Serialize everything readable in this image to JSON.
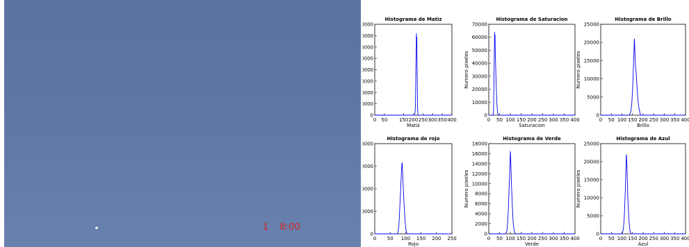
{
  "photo": {
    "overlay_number": "1",
    "overlay_time": "8:00",
    "overlay_color": "#d92020",
    "sky_color": "#5f77a4"
  },
  "chart_data": [
    {
      "type": "line",
      "title": "Histograma de Matiz",
      "xlabel": "Matiz",
      "ylabel": "",
      "xlim": [
        0,
        400
      ],
      "ylim": [
        0,
        8000
      ],
      "yticks": [
        0,
        1000,
        2000,
        3000,
        4000,
        5000,
        6000,
        7000,
        8000
      ],
      "ytick_labels": [
        "0",
        ")000",
        ")000",
        ")000",
        ")000",
        ")000",
        ")000",
        ")000",
        ")000"
      ],
      "xticks": [
        0,
        50,
        150,
        200,
        250,
        300,
        350,
        400
      ],
      "xtick_labels": [
        "0",
        "50",
        "150",
        "200",
        "250",
        "300",
        "350",
        "400"
      ],
      "color": "#0000ee",
      "series": [
        {
          "x": [
            0,
            207,
            209,
            211,
            212,
            213,
            214,
            215,
            216,
            217,
            218,
            219,
            220,
            221,
            222,
            224,
            400
          ],
          "y": [
            0,
            0,
            300,
            900,
            2000,
            3600,
            5000,
            6000,
            7200,
            6000,
            6900,
            4800,
            3400,
            2000,
            600,
            0,
            0
          ]
        }
      ]
    },
    {
      "type": "line",
      "title": "Histograma de Saturacion",
      "xlabel": "Saturacion",
      "ylabel": "Numero pixeles",
      "xlim": [
        0,
        400
      ],
      "ylim": [
        0,
        70000
      ],
      "yticks": [
        0,
        10000,
        20000,
        30000,
        40000,
        50000,
        60000,
        70000
      ],
      "ytick_labels": [
        "0",
        "10000",
        "20000",
        "30000",
        "40000",
        "50000",
        "60000",
        "70000"
      ],
      "xticks": [
        0,
        50,
        100,
        150,
        200,
        250,
        300,
        350,
        400
      ],
      "xtick_labels": [
        "0",
        "50",
        "100",
        "150",
        "200",
        "250",
        "300",
        "350",
        "400"
      ],
      "color": "#0000ee",
      "series": [
        {
          "x": [
            0,
            20,
            22,
            23,
            24,
            25,
            26,
            27,
            28,
            29,
            30,
            32,
            34,
            36,
            38,
            40,
            43,
            46,
            400
          ],
          "y": [
            0,
            0,
            3000,
            12000,
            26000,
            40000,
            52000,
            64000,
            56000,
            62000,
            50000,
            38000,
            26000,
            15000,
            8000,
            3500,
            800,
            0,
            0
          ]
        }
      ]
    },
    {
      "type": "line",
      "title": "Histograma de Brillo",
      "xlabel": "Brillo",
      "ylabel": "Numero pixeles",
      "xlim": [
        0,
        400
      ],
      "ylim": [
        0,
        25000
      ],
      "yticks": [
        0,
        5000,
        10000,
        15000,
        20000,
        25000
      ],
      "ytick_labels": [
        "0",
        "5000",
        "10000",
        "15000",
        "20000",
        "25000"
      ],
      "xticks": [
        0,
        50,
        100,
        150,
        200,
        250,
        300,
        350,
        400
      ],
      "xtick_labels": [
        "0",
        "50",
        "100",
        "150",
        "200",
        "250",
        "300",
        "350",
        "400"
      ],
      "color": "#0000ee",
      "series": [
        {
          "x": [
            0,
            135,
            142,
            147,
            150,
            153,
            155,
            157,
            158,
            159,
            160,
            162,
            164,
            167,
            170,
            174,
            180,
            188,
            400
          ],
          "y": [
            0,
            0,
            1000,
            3500,
            7000,
            11000,
            15000,
            17500,
            20000,
            21000,
            19500,
            16000,
            13500,
            12000,
            9000,
            5000,
            2000,
            0,
            0
          ]
        }
      ]
    },
    {
      "type": "line",
      "title": "Histograma de rojo",
      "xlabel": "Rojo",
      "ylabel": "",
      "xlim": [
        0,
        250
      ],
      "ylim": [
        0,
        20000
      ],
      "yticks": [
        0,
        5000,
        10000,
        15000,
        20000
      ],
      "ytick_labels": [
        "0",
        ")000",
        ")000",
        ")000",
        ")000"
      ],
      "xticks": [
        0,
        50,
        100,
        150,
        200,
        250
      ],
      "xtick_labels": [
        "0",
        "50",
        "100",
        "150",
        "200",
        "250"
      ],
      "color": "#0000ee",
      "series": [
        {
          "x": [
            0,
            74,
            78,
            80,
            82,
            84,
            86,
            88,
            89,
            90,
            92,
            94,
            96,
            98,
            100,
            102,
            105,
            250
          ],
          "y": [
            0,
            0,
            1500,
            4000,
            7000,
            10000,
            13000,
            15500,
            15800,
            14000,
            11000,
            8000,
            5500,
            3200,
            1500,
            500,
            0,
            0
          ]
        }
      ]
    },
    {
      "type": "line",
      "title": "Histograma de Verde",
      "xlabel": "Verde",
      "ylabel": "Numero pixeles",
      "xlim": [
        0,
        400
      ],
      "ylim": [
        0,
        18000
      ],
      "yticks": [
        0,
        2000,
        4000,
        6000,
        8000,
        10000,
        12000,
        14000,
        16000,
        18000
      ],
      "ytick_labels": [
        "0",
        "2000",
        "4000",
        "6000",
        "8000",
        "10000",
        "12000",
        "14000",
        "16000",
        "18000"
      ],
      "xticks": [
        0,
        50,
        100,
        150,
        200,
        250,
        300,
        350,
        400
      ],
      "xtick_labels": [
        "0",
        "50",
        "100",
        "150",
        "200",
        "250",
        "300",
        "350",
        "400"
      ],
      "color": "#0000ee",
      "series": [
        {
          "x": [
            0,
            80,
            85,
            88,
            91,
            94,
            97,
            99,
            100,
            101,
            103,
            105,
            108,
            111,
            114,
            118,
            123,
            400
          ],
          "y": [
            0,
            0,
            800,
            2500,
            5000,
            8500,
            12000,
            14500,
            16500,
            16000,
            13500,
            10000,
            7000,
            4000,
            2000,
            600,
            0,
            0
          ]
        }
      ]
    },
    {
      "type": "line",
      "title": "Histograma de Azul",
      "xlabel": "Azul",
      "ylabel": "Numero pixeles",
      "xlim": [
        0,
        400
      ],
      "ylim": [
        0,
        25000
      ],
      "yticks": [
        0,
        5000,
        10000,
        15000,
        20000,
        25000
      ],
      "ytick_labels": [
        "0",
        "5000",
        "10000",
        "15000",
        "20000",
        "25000"
      ],
      "xticks": [
        0,
        50,
        100,
        150,
        200,
        250,
        300,
        350,
        400
      ],
      "xtick_labels": [
        "0",
        "50",
        "100",
        "150",
        "200",
        "250",
        "300",
        "350",
        "400"
      ],
      "color": "#0000ee",
      "series": [
        {
          "x": [
            0,
            100,
            106,
            110,
            113,
            116,
            118,
            120,
            121,
            122,
            124,
            126,
            128,
            131,
            134,
            138,
            143,
            400
          ],
          "y": [
            0,
            0,
            1000,
            3500,
            7500,
            12000,
            16000,
            19500,
            22000,
            21500,
            18500,
            14000,
            10000,
            6000,
            3000,
            800,
            0,
            0
          ]
        }
      ]
    }
  ]
}
